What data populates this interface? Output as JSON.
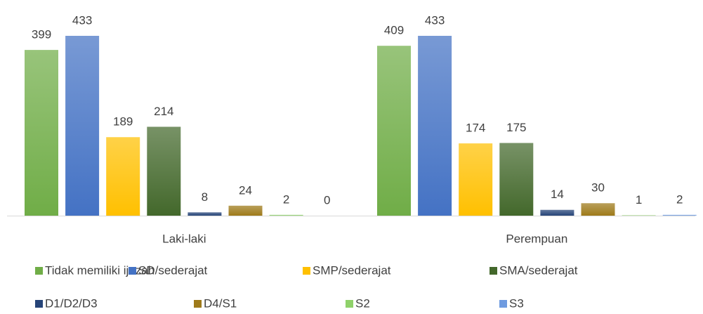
{
  "chart_data": {
    "type": "bar",
    "categories": [
      "Laki-laki",
      "Perempuan"
    ],
    "series": [
      {
        "name": "Tidak memiliki ijazah",
        "color": "#70ad47",
        "values": [
          399,
          409
        ]
      },
      {
        "name": "SD/sederajat",
        "color": "#4472c4",
        "values": [
          433,
          433
        ]
      },
      {
        "name": "SMP/sederajat",
        "color": "#ffc000",
        "values": [
          189,
          174
        ]
      },
      {
        "name": "SMA/sederajat",
        "color": "#43682b",
        "values": [
          214,
          175
        ]
      },
      {
        "name": "D1/D2/D3",
        "color": "#264478",
        "values": [
          8,
          14
        ]
      },
      {
        "name": "D4/S1",
        "color": "#9e7a1a",
        "values": [
          24,
          30
        ]
      },
      {
        "name": "S2",
        "color": "#8fd16a",
        "values": [
          2,
          1
        ]
      },
      {
        "name": "S3",
        "color": "#6f9be0",
        "values": [
          0,
          2
        ]
      }
    ],
    "legend": "bottom"
  }
}
